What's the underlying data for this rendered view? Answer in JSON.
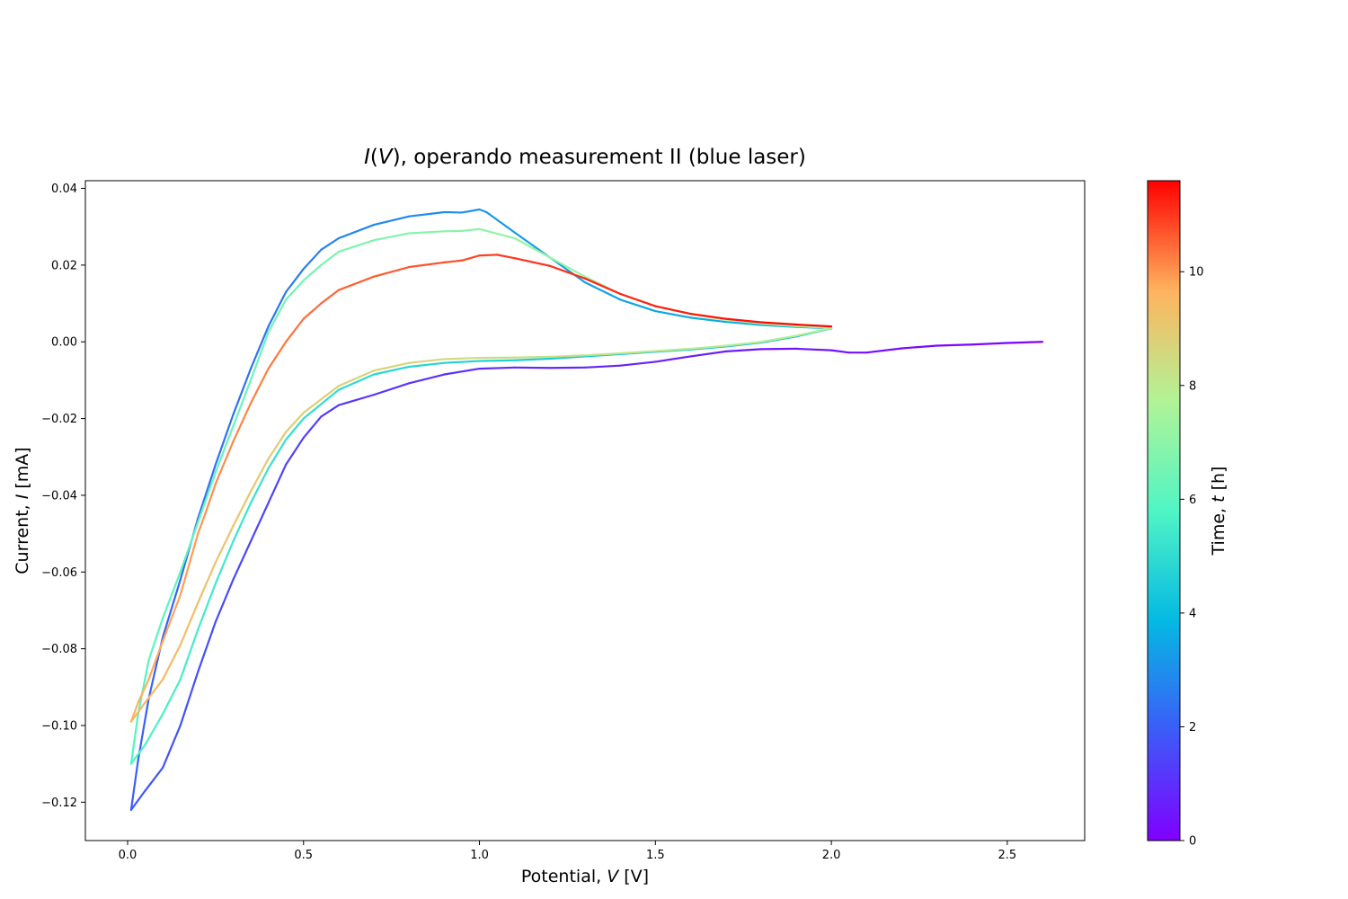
{
  "chart_data": {
    "type": "line",
    "title": {
      "prefix": "I",
      "paren_open": "(",
      "var": "V",
      "paren_close": ")",
      "suffix": ", operando measurement II (blue laser)"
    },
    "xlabel": {
      "text": "Potential, ",
      "var": "V",
      "unit": " [V]"
    },
    "ylabel": {
      "text": "Current, ",
      "var": "I",
      "unit": " [mA]"
    },
    "xlim": [
      -0.12,
      2.72
    ],
    "ylim": [
      -0.13,
      0.042
    ],
    "x_ticks": [
      {
        "value": 0.0,
        "label": "0.0"
      },
      {
        "value": 0.5,
        "label": "0.5"
      },
      {
        "value": 1.0,
        "label": "1.0"
      },
      {
        "value": 1.5,
        "label": "1.5"
      },
      {
        "value": 2.0,
        "label": "2.0"
      },
      {
        "value": 2.5,
        "label": "2.5"
      }
    ],
    "y_ticks": [
      {
        "value": 0.04,
        "label": "0.04"
      },
      {
        "value": 0.02,
        "label": "0.02"
      },
      {
        "value": 0.0,
        "label": "0.00"
      },
      {
        "value": -0.02,
        "label": "−0.02"
      },
      {
        "value": -0.04,
        "label": "−0.04"
      },
      {
        "value": -0.06,
        "label": "−0.06"
      },
      {
        "value": -0.08,
        "label": "−0.08"
      },
      {
        "value": -0.1,
        "label": "−0.10"
      },
      {
        "value": -0.12,
        "label": "−0.12"
      }
    ],
    "colorbar": {
      "label": {
        "text": "Time, ",
        "var": "t",
        "unit": " [h]"
      },
      "range": [
        0,
        11.6
      ],
      "colormap": "rainbow",
      "ticks": [
        {
          "value": 0,
          "label": "0"
        },
        {
          "value": 2,
          "label": "2"
        },
        {
          "value": 4,
          "label": "4"
        },
        {
          "value": 6,
          "label": "6"
        },
        {
          "value": 8,
          "label": "8"
        },
        {
          "value": 10,
          "label": "10"
        }
      ]
    },
    "grid": false,
    "series": [
      {
        "time_range": [
          0.0,
          1.9
        ],
        "points": [
          [
            2.6,
            0.0
          ],
          [
            2.5,
            -0.0003
          ],
          [
            2.4,
            -0.0007
          ],
          [
            2.3,
            -0.001
          ],
          [
            2.2,
            -0.0017
          ],
          [
            2.1,
            -0.0028
          ],
          [
            2.05,
            -0.0028
          ],
          [
            2.0,
            -0.0022
          ],
          [
            1.9,
            -0.0018
          ],
          [
            1.8,
            -0.0019
          ],
          [
            1.7,
            -0.0025
          ],
          [
            1.6,
            -0.0038
          ],
          [
            1.5,
            -0.0052
          ],
          [
            1.4,
            -0.0062
          ],
          [
            1.3,
            -0.0067
          ],
          [
            1.2,
            -0.0068
          ],
          [
            1.1,
            -0.0067
          ],
          [
            1.0,
            -0.007
          ],
          [
            0.9,
            -0.0085
          ],
          [
            0.8,
            -0.0108
          ],
          [
            0.7,
            -0.0138
          ],
          [
            0.6,
            -0.0165
          ],
          [
            0.55,
            -0.0195
          ],
          [
            0.5,
            -0.025
          ],
          [
            0.45,
            -0.032
          ],
          [
            0.4,
            -0.042
          ],
          [
            0.35,
            -0.052
          ],
          [
            0.3,
            -0.062
          ],
          [
            0.25,
            -0.073
          ],
          [
            0.2,
            -0.086
          ],
          [
            0.15,
            -0.1
          ],
          [
            0.1,
            -0.111
          ],
          [
            0.05,
            -0.117
          ],
          [
            0.01,
            -0.122
          ]
        ]
      },
      {
        "time_range": [
          1.9,
          3.8
        ],
        "points": [
          [
            0.01,
            -0.122
          ],
          [
            0.03,
            -0.109
          ],
          [
            0.06,
            -0.093
          ],
          [
            0.1,
            -0.077
          ],
          [
            0.15,
            -0.062
          ],
          [
            0.2,
            -0.046
          ],
          [
            0.25,
            -0.032
          ],
          [
            0.3,
            -0.019
          ],
          [
            0.35,
            -0.007
          ],
          [
            0.4,
            0.004
          ],
          [
            0.45,
            0.013
          ],
          [
            0.5,
            0.019
          ],
          [
            0.55,
            0.024
          ],
          [
            0.6,
            0.027
          ],
          [
            0.7,
            0.0305
          ],
          [
            0.8,
            0.0327
          ],
          [
            0.9,
            0.0338
          ],
          [
            0.95,
            0.0337
          ],
          [
            1.0,
            0.0345
          ],
          [
            1.02,
            0.0338
          ],
          [
            1.1,
            0.0285
          ],
          [
            1.2,
            0.022
          ],
          [
            1.3,
            0.0155
          ],
          [
            1.4,
            0.011
          ],
          [
            1.5,
            0.008
          ],
          [
            1.6,
            0.0063
          ],
          [
            1.7,
            0.0052
          ],
          [
            1.8,
            0.0044
          ],
          [
            1.9,
            0.0039
          ],
          [
            2.0,
            0.0035
          ]
        ]
      },
      {
        "time_range": [
          3.8,
          5.8
        ],
        "points": [
          [
            2.0,
            0.0035
          ],
          [
            1.9,
            0.0014
          ],
          [
            1.8,
            -0.0002
          ],
          [
            1.7,
            -0.0012
          ],
          [
            1.6,
            -0.002
          ],
          [
            1.5,
            -0.0026
          ],
          [
            1.4,
            -0.0032
          ],
          [
            1.3,
            -0.0038
          ],
          [
            1.2,
            -0.0044
          ],
          [
            1.1,
            -0.0048
          ],
          [
            1.0,
            -0.005
          ],
          [
            0.9,
            -0.0055
          ],
          [
            0.8,
            -0.0065
          ],
          [
            0.7,
            -0.0085
          ],
          [
            0.6,
            -0.0125
          ],
          [
            0.5,
            -0.02
          ],
          [
            0.45,
            -0.0255
          ],
          [
            0.4,
            -0.033
          ],
          [
            0.35,
            -0.042
          ],
          [
            0.3,
            -0.052
          ],
          [
            0.25,
            -0.063
          ],
          [
            0.2,
            -0.075
          ],
          [
            0.15,
            -0.088
          ],
          [
            0.1,
            -0.097
          ],
          [
            0.05,
            -0.105
          ],
          [
            0.01,
            -0.11
          ]
        ]
      },
      {
        "time_range": [
          5.8,
          7.7
        ],
        "points": [
          [
            0.01,
            -0.11
          ],
          [
            0.03,
            -0.097
          ],
          [
            0.06,
            -0.083
          ],
          [
            0.1,
            -0.072
          ],
          [
            0.15,
            -0.06
          ],
          [
            0.2,
            -0.047
          ],
          [
            0.25,
            -0.034
          ],
          [
            0.3,
            -0.022
          ],
          [
            0.35,
            -0.01
          ],
          [
            0.4,
            0.0025
          ],
          [
            0.45,
            0.011
          ],
          [
            0.5,
            0.016
          ],
          [
            0.55,
            0.02
          ],
          [
            0.6,
            0.0235
          ],
          [
            0.7,
            0.0265
          ],
          [
            0.8,
            0.0283
          ],
          [
            0.9,
            0.0288
          ],
          [
            0.95,
            0.0289
          ],
          [
            1.0,
            0.0294
          ],
          [
            1.1,
            0.027
          ],
          [
            1.2,
            0.022
          ],
          [
            1.3,
            0.017
          ],
          [
            1.4,
            0.0125
          ],
          [
            1.5,
            0.0093
          ],
          [
            1.6,
            0.0072
          ],
          [
            1.7,
            0.0058
          ],
          [
            1.8,
            0.0048
          ],
          [
            1.9,
            0.0041
          ],
          [
            2.0,
            0.0036
          ]
        ]
      },
      {
        "time_range": [
          7.7,
          9.6
        ],
        "points": [
          [
            2.0,
            0.0036
          ],
          [
            1.9,
            0.0016
          ],
          [
            1.8,
            0.0
          ],
          [
            1.7,
            -0.001
          ],
          [
            1.6,
            -0.0018
          ],
          [
            1.5,
            -0.0024
          ],
          [
            1.4,
            -0.003
          ],
          [
            1.3,
            -0.0035
          ],
          [
            1.2,
            -0.0039
          ],
          [
            1.1,
            -0.0041
          ],
          [
            1.0,
            -0.0042
          ],
          [
            0.9,
            -0.0045
          ],
          [
            0.8,
            -0.0055
          ],
          [
            0.7,
            -0.0075
          ],
          [
            0.6,
            -0.0115
          ],
          [
            0.5,
            -0.0185
          ],
          [
            0.45,
            -0.0235
          ],
          [
            0.4,
            -0.0305
          ],
          [
            0.35,
            -0.039
          ],
          [
            0.3,
            -0.048
          ],
          [
            0.25,
            -0.0575
          ],
          [
            0.2,
            -0.068
          ],
          [
            0.15,
            -0.079
          ],
          [
            0.1,
            -0.088
          ],
          [
            0.05,
            -0.094
          ],
          [
            0.01,
            -0.099
          ]
        ]
      },
      {
        "time_range": [
          9.6,
          11.6
        ],
        "points": [
          [
            0.01,
            -0.099
          ],
          [
            0.03,
            -0.094
          ],
          [
            0.06,
            -0.088
          ],
          [
            0.1,
            -0.078
          ],
          [
            0.15,
            -0.066
          ],
          [
            0.2,
            -0.05
          ],
          [
            0.22,
            -0.045
          ],
          [
            0.25,
            -0.037
          ],
          [
            0.3,
            -0.026
          ],
          [
            0.35,
            -0.016
          ],
          [
            0.4,
            -0.007
          ],
          [
            0.45,
            0.0
          ],
          [
            0.5,
            0.006
          ],
          [
            0.55,
            0.01
          ],
          [
            0.6,
            0.0135
          ],
          [
            0.7,
            0.017
          ],
          [
            0.8,
            0.0195
          ],
          [
            0.9,
            0.0207
          ],
          [
            0.95,
            0.0212
          ],
          [
            1.0,
            0.0225
          ],
          [
            1.05,
            0.0227
          ],
          [
            1.1,
            0.0218
          ],
          [
            1.2,
            0.0198
          ],
          [
            1.3,
            0.0165
          ],
          [
            1.4,
            0.0125
          ],
          [
            1.5,
            0.0093
          ],
          [
            1.6,
            0.0073
          ],
          [
            1.7,
            0.006
          ],
          [
            1.8,
            0.0051
          ],
          [
            1.9,
            0.0045
          ],
          [
            2.0,
            0.004
          ]
        ]
      }
    ]
  }
}
